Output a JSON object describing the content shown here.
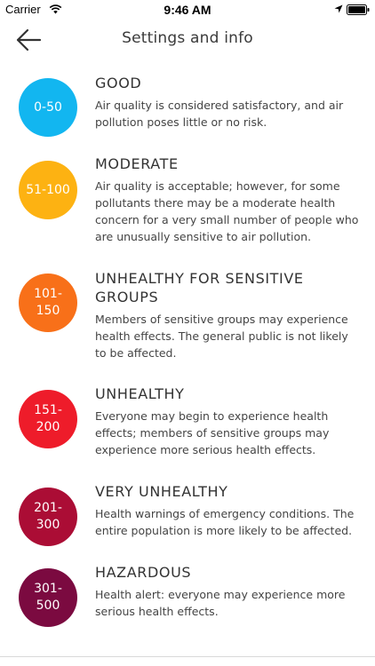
{
  "status_bar": {
    "carrier": "Carrier",
    "time": "9:46 AM",
    "icons": [
      "wifi-icon",
      "location-arrow-icon",
      "battery-icon"
    ]
  },
  "nav": {
    "title": "Settings and info",
    "back_icon": "arrow-left-icon"
  },
  "levels": [
    {
      "range": "0-50",
      "title": "GOOD",
      "description": "Air quality is considered satisfactory, and air pollution poses little or no risk.",
      "color": "#12b6f0"
    },
    {
      "range": "51-100",
      "title": "MODERATE",
      "description": "Air quality is acceptable; however, for some pollutants there may be a moderate health concern for a very small number of people who are unusually sensitive to air pollution.",
      "color": "#fdb212"
    },
    {
      "range": "101-\n150",
      "title": "UNHEALTHY FOR SENSITIVE GROUPS",
      "description": "Members of sensitive groups may experience health effects. The general public is not likely to be affected.",
      "color": "#f87019"
    },
    {
      "range": "151-\n200",
      "title": "UNHEALTHY",
      "description": "Everyone may begin to experience health effects; members of sensitive groups may experience more serious health effects.",
      "color": "#ee1c2a"
    },
    {
      "range": "201-\n300",
      "title": "VERY UNHEALTHY",
      "description": "Health warnings of emergency conditions. The entire population is more likely to be affected.",
      "color": "#ab0d35"
    },
    {
      "range": "301-\n500",
      "title": "HAZARDOUS",
      "description": "Health alert: everyone may experience more serious health effects.",
      "color": "#7b0a40"
    }
  ]
}
